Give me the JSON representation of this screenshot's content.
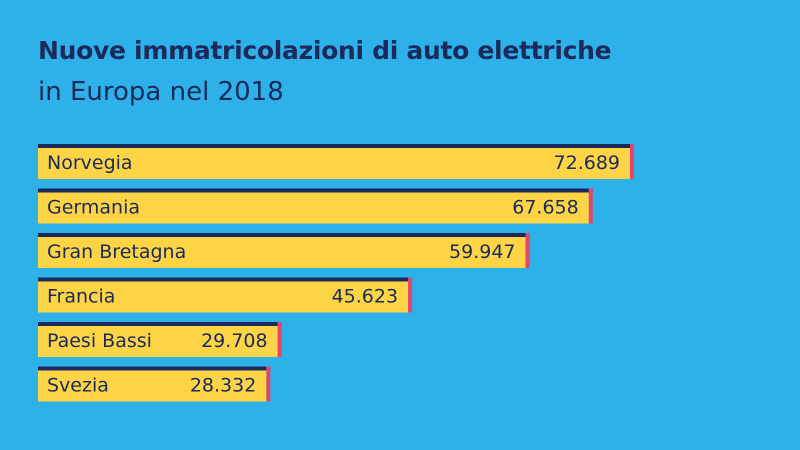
{
  "chart_data": {
    "type": "bar",
    "orientation": "horizontal",
    "title": "Nuove immatricolazioni di auto elettriche",
    "subtitle": "in Europa nel 2018",
    "categories": [
      "Norvegia",
      "Germania",
      "Gran Bretagna",
      "Francia",
      "Paesi Bassi",
      "Svezia"
    ],
    "values": [
      72689,
      67658,
      59947,
      45623,
      29708,
      28332
    ],
    "value_labels": [
      "72.689",
      "67.658",
      "59.947",
      "45.623",
      "29.708",
      "28.332"
    ],
    "xlim": [
      0,
      72689
    ],
    "grid": false,
    "legend": "none"
  },
  "colors": {
    "background": "#2eb1e8",
    "bar": "#fcd446",
    "bar_top": "#1b2a5a",
    "bar_side": "#e8446a",
    "text": "#1b2a5a"
  }
}
